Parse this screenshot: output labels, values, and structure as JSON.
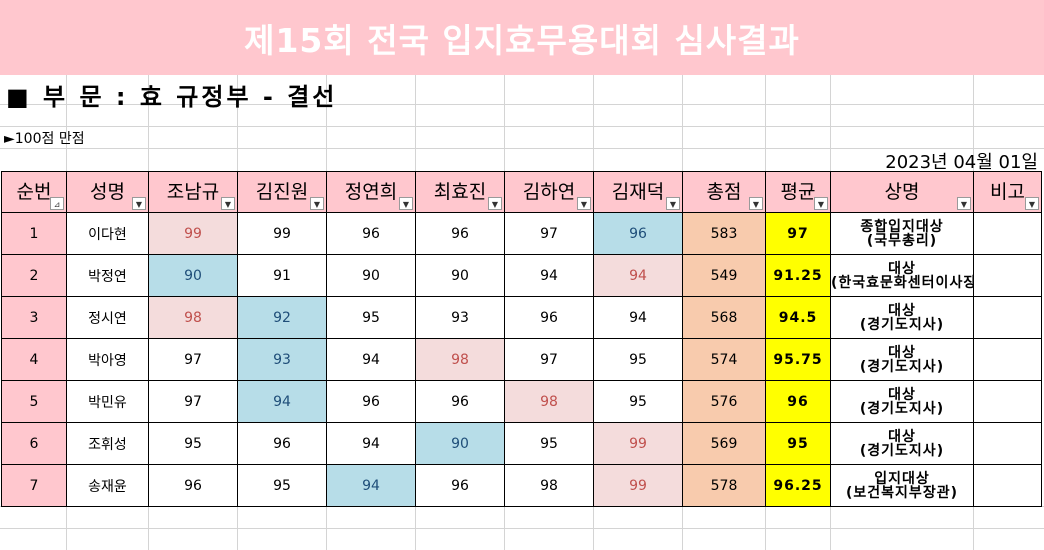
{
  "title": "제15회 전국 입지효무용대회 심사결과",
  "section_heading": "■ 부 문 : 효 규정부 - 결선",
  "note": "►100점 만점",
  "date": "2023년 04월 01일",
  "headers": [
    "순번",
    "성명",
    "조남규",
    "김진원",
    "정연희",
    "최효진",
    "김하연",
    "김재덕",
    "총점",
    "평균",
    "상명",
    "비고"
  ],
  "rows": [
    {
      "rank": "1",
      "name": "이다현",
      "scores": [
        "99",
        "99",
        "96",
        "96",
        "97",
        "96"
      ],
      "total": "583",
      "avg": "97",
      "award_1": "종합입지대상",
      "award_2": "(국무총리)",
      "note": ""
    },
    {
      "rank": "2",
      "name": "박정연",
      "scores": [
        "90",
        "91",
        "90",
        "90",
        "94",
        "94"
      ],
      "total": "549",
      "avg": "91.25",
      "award_1": "대상",
      "award_2": "(한국효문화센터이사장)",
      "note": ""
    },
    {
      "rank": "3",
      "name": "정시연",
      "scores": [
        "98",
        "92",
        "95",
        "93",
        "96",
        "94"
      ],
      "total": "568",
      "avg": "94.5",
      "award_1": "대상",
      "award_2": "(경기도지사)",
      "note": ""
    },
    {
      "rank": "4",
      "name": "박아영",
      "scores": [
        "97",
        "93",
        "94",
        "98",
        "97",
        "95"
      ],
      "total": "574",
      "avg": "95.75",
      "award_1": "대상",
      "award_2": "(경기도지사)",
      "note": ""
    },
    {
      "rank": "5",
      "name": "박민유",
      "scores": [
        "97",
        "94",
        "96",
        "96",
        "98",
        "95"
      ],
      "total": "576",
      "avg": "96",
      "award_1": "대상",
      "award_2": "(경기도지사)",
      "note": ""
    },
    {
      "rank": "6",
      "name": "조휘성",
      "scores": [
        "95",
        "96",
        "94",
        "90",
        "95",
        "99"
      ],
      "total": "569",
      "avg": "95",
      "award_1": "대상",
      "award_2": "(경기도지사)",
      "note": ""
    },
    {
      "rank": "7",
      "name": "송재윤",
      "scores": [
        "96",
        "95",
        "94",
        "96",
        "98",
        "99"
      ],
      "total": "578",
      "avg": "96.25",
      "award_1": "입지대상",
      "award_2": "(보건복지부장관)",
      "note": ""
    }
  ],
  "highlight": {
    "high": [
      [
        0,
        0
      ],
      [
        1,
        5
      ],
      [
        2,
        0
      ],
      [
        3,
        3
      ],
      [
        4,
        4
      ],
      [
        5,
        5
      ],
      [
        6,
        5
      ]
    ],
    "low": [
      [
        0,
        5
      ],
      [
        1,
        0
      ],
      [
        2,
        1
      ],
      [
        3,
        1
      ],
      [
        4,
        1
      ],
      [
        5,
        3
      ],
      [
        6,
        2
      ]
    ]
  },
  "filter_icons": {
    "sorted": "sort-filter-icon",
    "default": "filter-dropdown-icon"
  },
  "colors": {
    "header_bg": "#ffc7ce",
    "high_bg": "#f4dcdc",
    "low_bg": "#b7dde8",
    "total_bg": "#f8cbad",
    "avg_bg": "#ffff00"
  }
}
